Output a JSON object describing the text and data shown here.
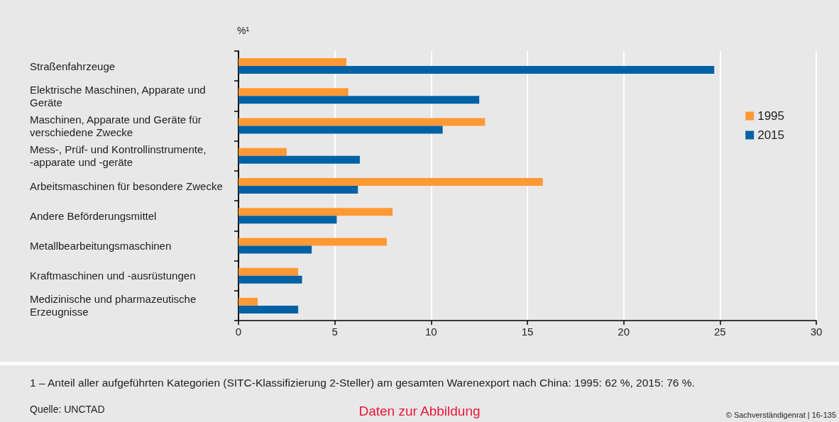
{
  "chart_data": {
    "type": "bar",
    "orientation": "horizontal",
    "xlabel": "%¹",
    "categories": [
      "Straßenfahrzeuge",
      "Elektrische Maschinen, Apparate und Geräte",
      "Maschinen, Apparate und Geräte für verschiedene Zwecke",
      "Mess-, Prüf- und Kontrollinstrumente, -apparate und -geräte",
      "Arbeitsmaschinen für besondere Zwecke",
      "Andere Beförderungsmittel",
      "Metallbearbeitungsmaschinen",
      "Kraftmaschinen und -ausrüstungen",
      "Medizinische und pharmazeutische Erzeugnisse"
    ],
    "series": [
      {
        "name": "1995",
        "color": "#ff9933",
        "values": [
          5.6,
          5.7,
          12.8,
          2.5,
          15.8,
          8.0,
          7.7,
          3.1,
          1.0
        ]
      },
      {
        "name": "2015",
        "color": "#0062a5",
        "values": [
          24.7,
          12.5,
          10.6,
          6.3,
          6.2,
          5.1,
          3.8,
          3.3,
          3.1
        ]
      }
    ],
    "xlim": [
      0,
      30
    ],
    "xticks": [
      0,
      5,
      10,
      15,
      20,
      25,
      30
    ],
    "grid": "x",
    "legend": "right",
    "annotations": [
      "1 – Anteil aller aufgeführten Kategorien (SITC-Klassifizierung 2-Steller) am gesamten Warenexport nach China: 1995: 62 %, 2015: 76 %.",
      "Quelle: UNCTAD",
      "Daten zur Abbildung",
      "© Sachverständigenrat | 16-135"
    ]
  }
}
